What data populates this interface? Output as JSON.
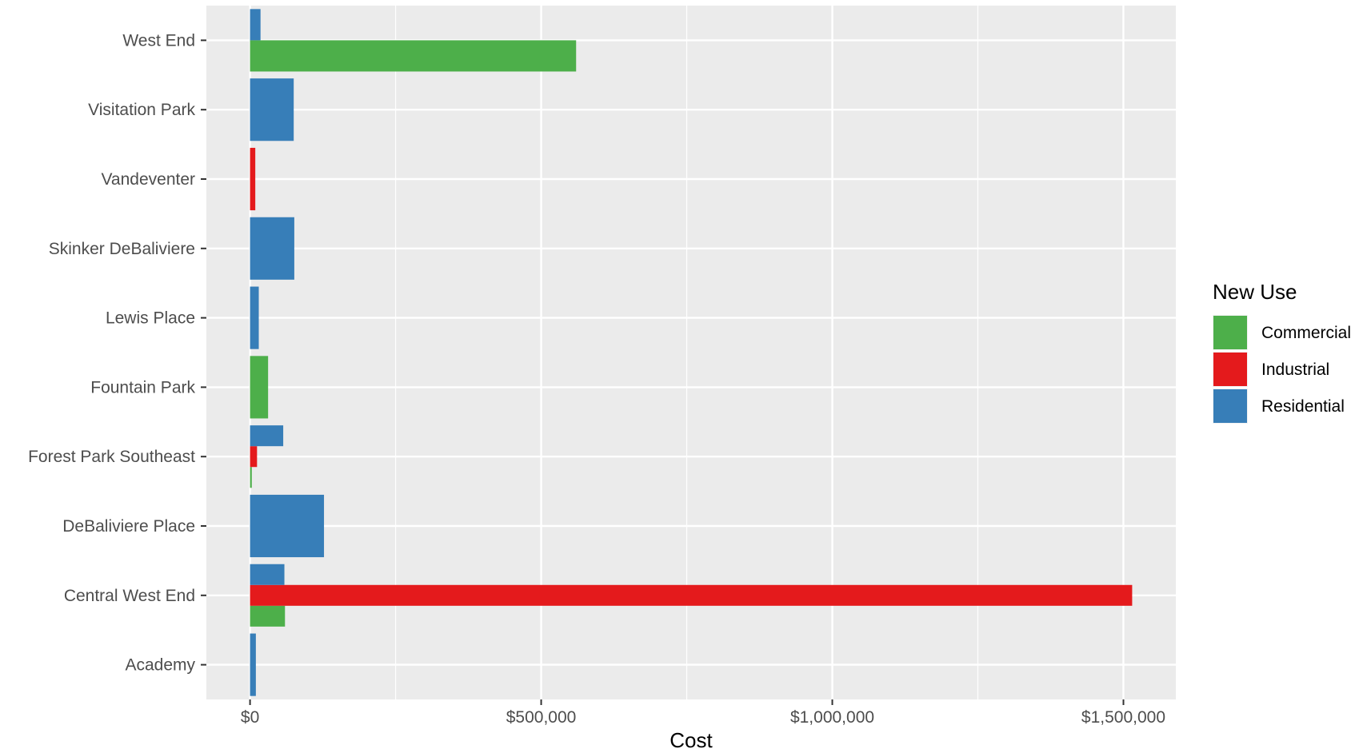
{
  "chart_data": {
    "type": "bar",
    "orientation": "horizontal",
    "position": "dodge",
    "categories": [
      "West End",
      "Visitation Park",
      "Vandeventer",
      "Skinker DeBaliviere",
      "Lewis Place",
      "Fountain Park",
      "Forest Park Southeast",
      "DeBaliviere Place",
      "Central West End",
      "Academy"
    ],
    "series": [
      {
        "name": "Commercial",
        "color": "#4DAF4A",
        "values": [
          560000,
          null,
          null,
          null,
          null,
          31000,
          3000,
          null,
          60000,
          null
        ]
      },
      {
        "name": "Industrial",
        "color": "#E41A1C",
        "values": [
          null,
          null,
          9000,
          null,
          null,
          null,
          12000,
          null,
          1515000,
          null
        ]
      },
      {
        "name": "Residential",
        "color": "#377EB8",
        "values": [
          18000,
          75000,
          null,
          76000,
          15000,
          null,
          57000,
          127000,
          59000,
          10000
        ]
      }
    ],
    "title": "",
    "xlabel": "Cost",
    "ylabel": "",
    "xlim": [
      -75000,
      1590000
    ],
    "xticks": [
      0,
      500000,
      1000000,
      1500000
    ],
    "xtick_labels": [
      "$0",
      "$500,000",
      "$1,000,000",
      "$1,500,000"
    ],
    "grid": true,
    "legend": {
      "title": "New Use",
      "placement": "right",
      "entries": [
        "Commercial",
        "Industrial",
        "Residential"
      ]
    }
  }
}
